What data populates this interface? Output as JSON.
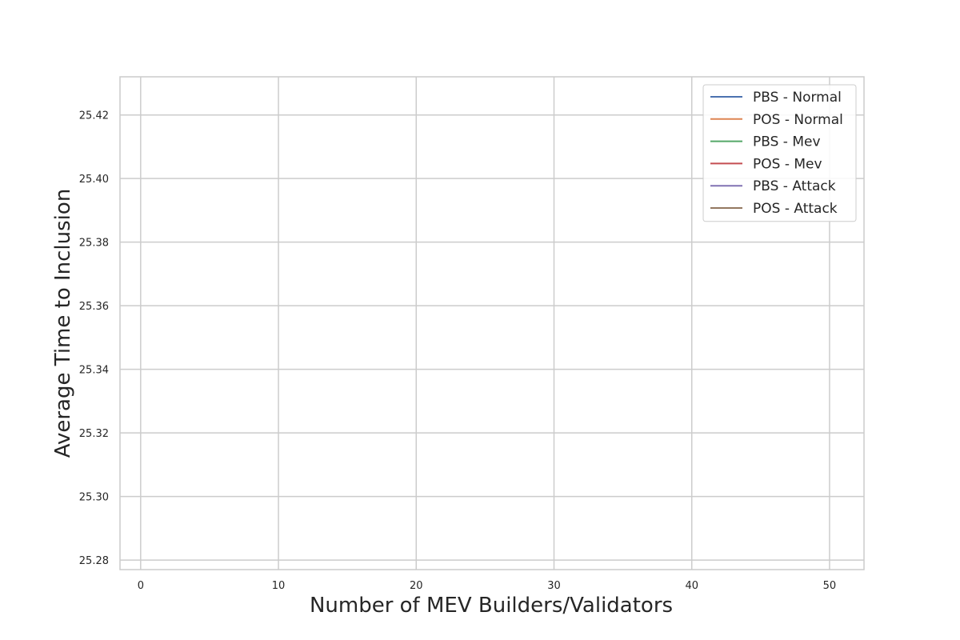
{
  "chart_data": {
    "type": "line",
    "title": "",
    "xlabel": "Number of MEV Builders/Validators",
    "ylabel": "Average Time to Inclusion",
    "xlim": [
      -1.5,
      52.5
    ],
    "ylim": [
      25.277,
      25.432
    ],
    "x_ticks": [
      0,
      10,
      20,
      30,
      40,
      50
    ],
    "x_tick_labels": [
      "0",
      "10",
      "20",
      "30",
      "40",
      "50"
    ],
    "y_ticks": [
      25.28,
      25.3,
      25.32,
      25.34,
      25.36,
      25.38,
      25.4,
      25.42
    ],
    "y_tick_labels": [
      "25.28",
      "25.30",
      "25.32",
      "25.34",
      "25.36",
      "25.38",
      "25.40",
      "25.42"
    ],
    "grid": true,
    "legend_position": "top-right",
    "series": [
      {
        "name": "PBS - Normal",
        "color": "#4c72b0",
        "x": [],
        "y": []
      },
      {
        "name": "POS - Normal",
        "color": "#dd8452",
        "x": [],
        "y": []
      },
      {
        "name": "PBS - Mev",
        "color": "#55a868",
        "x": [],
        "y": []
      },
      {
        "name": "POS - Mev",
        "color": "#c44e52",
        "x": [],
        "y": []
      },
      {
        "name": "PBS - Attack",
        "color": "#8172b3",
        "x": [],
        "y": []
      },
      {
        "name": "POS - Attack",
        "color": "#937860",
        "x": [],
        "y": []
      }
    ]
  }
}
